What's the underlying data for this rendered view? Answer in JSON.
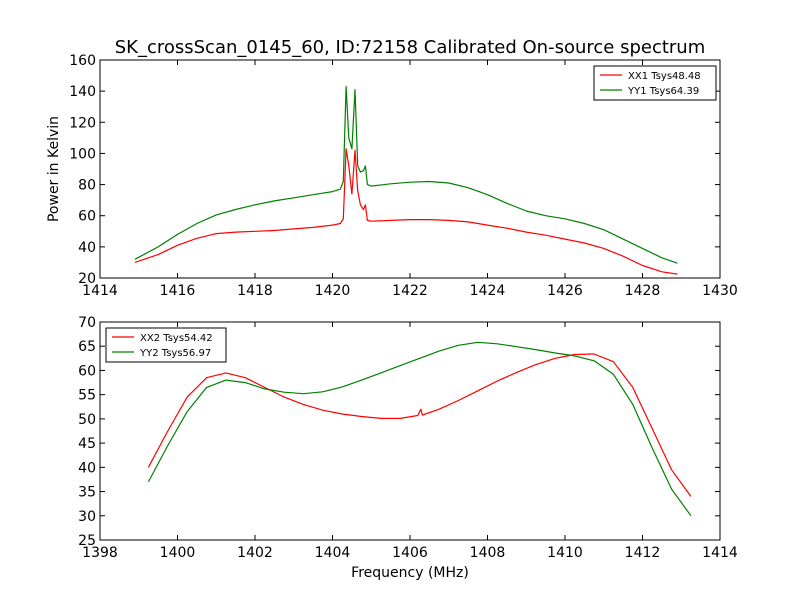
{
  "title": "SK_crossScan_0145_60, ID:72158 Calibrated On-source spectrum",
  "chart_data": [
    {
      "type": "line",
      "ylabel": "Power in Kelvin",
      "xlabel": "",
      "xlim": [
        1414,
        1430
      ],
      "ylim": [
        20,
        160
      ],
      "xticks": [
        "1414",
        "1416",
        "1418",
        "1420",
        "1422",
        "1424",
        "1426",
        "1428",
        "1430"
      ],
      "yticks": [
        "20",
        "40",
        "60",
        "80",
        "100",
        "120",
        "140",
        "160"
      ],
      "legend_position": "top-right",
      "series": [
        {
          "name": "XX1 Tsys48.48",
          "color": "#ff0000",
          "x": [
            1414.9,
            1415.5,
            1416.0,
            1416.5,
            1417.0,
            1417.5,
            1418.0,
            1418.5,
            1419.0,
            1419.5,
            1420.0,
            1420.2,
            1420.28,
            1420.35,
            1420.42,
            1420.5,
            1420.58,
            1420.65,
            1420.72,
            1420.8,
            1420.85,
            1420.9,
            1421.0,
            1421.5,
            1422.0,
            1422.5,
            1423.0,
            1423.5,
            1424.0,
            1424.5,
            1425.0,
            1425.5,
            1426.0,
            1426.5,
            1427.0,
            1427.5,
            1428.0,
            1428.5,
            1428.9
          ],
          "values": [
            30,
            35,
            41,
            45.5,
            48.5,
            49.5,
            50,
            50.5,
            51.5,
            52.5,
            54,
            55,
            58,
            103,
            92,
            74,
            102,
            76,
            67,
            64,
            67,
            57,
            56.5,
            57,
            57.5,
            57.5,
            57,
            56,
            54,
            52,
            49.5,
            47.5,
            45,
            42.5,
            39,
            34,
            28,
            24,
            22.5
          ]
        },
        {
          "name": "YY1 Tsys64.39",
          "color": "#008000",
          "x": [
            1414.9,
            1415.5,
            1416.0,
            1416.5,
            1417.0,
            1417.5,
            1418.0,
            1418.5,
            1419.0,
            1419.5,
            1420.0,
            1420.2,
            1420.28,
            1420.35,
            1420.42,
            1420.5,
            1420.58,
            1420.65,
            1420.72,
            1420.8,
            1420.85,
            1420.9,
            1421.0,
            1421.5,
            1422.0,
            1422.5,
            1423.0,
            1423.5,
            1424.0,
            1424.5,
            1425.0,
            1425.5,
            1426.0,
            1426.5,
            1427.0,
            1427.5,
            1428.0,
            1428.5,
            1428.9
          ],
          "values": [
            32,
            40,
            48,
            55,
            60.5,
            64,
            67,
            69.5,
            71.5,
            73.5,
            75.5,
            77,
            82,
            143,
            110,
            103,
            141,
            92,
            88,
            89,
            92,
            80,
            79,
            80.5,
            81.5,
            82,
            81,
            78,
            73.5,
            68,
            63,
            60,
            58,
            55,
            51,
            45,
            39,
            33,
            29.5
          ]
        }
      ]
    },
    {
      "type": "line",
      "ylabel": "",
      "xlabel": "Frequency (MHz)",
      "xlim": [
        1398,
        1414
      ],
      "ylim": [
        25,
        70
      ],
      "xticks": [
        "1398",
        "1400",
        "1402",
        "1404",
        "1406",
        "1408",
        "1410",
        "1412",
        "1414"
      ],
      "yticks": [
        "25",
        "30",
        "35",
        "40",
        "45",
        "50",
        "55",
        "60",
        "65",
        "70"
      ],
      "legend_position": "top-left",
      "series": [
        {
          "name": "XX2 Tsys54.42",
          "color": "#ff0000",
          "x": [
            1399.25,
            1399.75,
            1400.25,
            1400.75,
            1401.25,
            1401.75,
            1402.25,
            1402.75,
            1403.25,
            1403.75,
            1404.25,
            1404.75,
            1405.25,
            1405.75,
            1406.2,
            1406.28,
            1406.32,
            1406.4,
            1406.75,
            1407.25,
            1407.75,
            1408.25,
            1408.75,
            1409.25,
            1409.75,
            1410.25,
            1410.75,
            1411.25,
            1411.75,
            1412.25,
            1412.75,
            1413.25
          ],
          "values": [
            40,
            47.5,
            54.5,
            58.5,
            59.5,
            58.5,
            56.5,
            54.5,
            53,
            51.8,
            51,
            50.5,
            50.1,
            50.1,
            50.7,
            52,
            50.8,
            51,
            52,
            53.8,
            55.8,
            57.8,
            59.6,
            61.2,
            62.5,
            63.3,
            63.4,
            61.8,
            56.5,
            48,
            39.5,
            34
          ]
        },
        {
          "name": "YY2 Tsys56.97",
          "color": "#008000",
          "x": [
            1399.25,
            1399.75,
            1400.25,
            1400.75,
            1401.25,
            1401.75,
            1402.25,
            1402.75,
            1403.25,
            1403.75,
            1404.25,
            1404.75,
            1405.25,
            1405.75,
            1406.25,
            1406.75,
            1407.25,
            1407.75,
            1408.25,
            1408.75,
            1409.25,
            1409.75,
            1410.25,
            1410.75,
            1411.25,
            1411.75,
            1412.25,
            1412.75,
            1413.25
          ],
          "values": [
            37,
            44.5,
            51.5,
            56.5,
            58,
            57.5,
            56.2,
            55.5,
            55.2,
            55.6,
            56.6,
            58,
            59.5,
            61,
            62.5,
            64,
            65.2,
            65.8,
            65.5,
            64.9,
            64.3,
            63.6,
            63,
            62,
            59.2,
            53,
            44,
            35.5,
            30
          ]
        }
      ]
    }
  ]
}
